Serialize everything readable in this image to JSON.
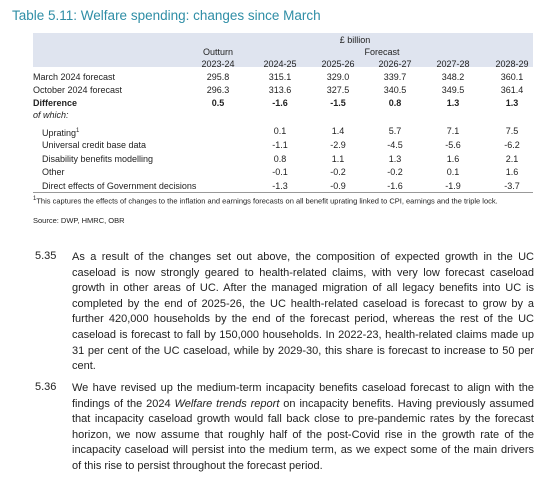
{
  "title": "Table 5.11: Welfare spending: changes since March",
  "table": {
    "unit": "£ billion",
    "group_labels": [
      "Outturn",
      "Forecast"
    ],
    "columns": [
      "2023-24",
      "2024-25",
      "2025-26",
      "2026-27",
      "2027-28",
      "2028-29"
    ],
    "rows": [
      {
        "label": "March 2024 forecast",
        "values": [
          "295.8",
          "315.1",
          "329.0",
          "339.7",
          "348.2",
          "360.1"
        ]
      },
      {
        "label": "October 2024 forecast",
        "values": [
          "296.3",
          "313.6",
          "327.5",
          "340.5",
          "349.5",
          "361.4"
        ]
      },
      {
        "label": "Difference",
        "values": [
          "0.5",
          "-1.6",
          "-1.5",
          "0.8",
          "1.3",
          "1.3"
        ]
      }
    ],
    "of_which": "of which:",
    "sub_rows": [
      {
        "label": "Uprating",
        "marker": "1",
        "values": [
          "0.1",
          "1.4",
          "5.7",
          "7.1",
          "7.5"
        ]
      },
      {
        "label": "Universal credit base data",
        "values": [
          "-1.1",
          "-2.9",
          "-4.5",
          "-5.6",
          "-6.2"
        ]
      },
      {
        "label": "Disability benefits modelling",
        "values": [
          "0.8",
          "1.1",
          "1.3",
          "1.6",
          "2.1"
        ]
      },
      {
        "label": "Other",
        "values": [
          "-0.1",
          "-0.2",
          "-0.2",
          "0.1",
          "1.6"
        ]
      },
      {
        "label": "Direct effects of Government decisions",
        "values": [
          "-1.3",
          "-0.9",
          "-1.6",
          "-1.9",
          "-3.7"
        ]
      }
    ],
    "footnote": {
      "marker": "1",
      "text": "This captures the effects of changes to the inflation and earnings forecasts on all benefit uprating linked to CPI, earnings and the triple lock."
    },
    "source": "Source: DWP, HMRC, OBR"
  },
  "paragraphs": [
    {
      "number": "5.35",
      "runs": [
        {
          "text": "As a result of the changes set out above, the composition of expected growth in the UC caseload is now strongly geared to health-related claims, with very low forecast caseload growth in other areas of UC. After the managed migration of all legacy benefits into UC is completed by the end of 2025-26, the UC health-related caseload is forecast to grow by a further 420,000 households by the end of the forecast period, whereas the rest of the UC caseload is forecast to fall by 150,000 households. In 2022-23, health-related claims made up 31 per cent of the UC caseload, while by 2029-30, this share is forecast to increase to 50 per cent."
        }
      ]
    },
    {
      "number": "5.36",
      "runs": [
        {
          "text": "We have revised up the medium-term incapacity benefits caseload forecast to align with the findings of the 2024 "
        },
        {
          "text": "Welfare trends report",
          "italic": true
        },
        {
          "text": " on incapacity benefits. Having previously assumed that incapacity caseload growth would fall back close to pre-pandemic rates by the forecast horizon, we now assume that roughly half of the post-Covid rise in the growth rate of the incapacity caseload will persist into the medium term, as we expect some of the main drivers of this rise to persist throughout the forecast period."
        }
      ]
    }
  ]
}
